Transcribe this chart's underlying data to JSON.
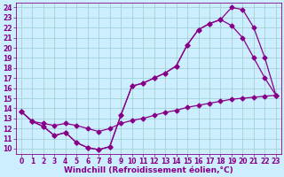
{
  "background_color": "#cceeff",
  "line_color": "#880088",
  "marker": "D",
  "markersize": 2.5,
  "linewidth": 0.9,
  "xlabel": "Windchill (Refroidissement éolien,°C)",
  "xlabel_fontsize": 6.5,
  "tick_fontsize": 5.5,
  "xlim": [
    -0.5,
    23.5
  ],
  "ylim": [
    9.5,
    24.5
  ],
  "xticks": [
    0,
    1,
    2,
    3,
    4,
    5,
    6,
    7,
    8,
    9,
    10,
    11,
    12,
    13,
    14,
    15,
    16,
    17,
    18,
    19,
    20,
    21,
    22,
    23
  ],
  "yticks": [
    10,
    11,
    12,
    13,
    14,
    15,
    16,
    17,
    18,
    19,
    20,
    21,
    22,
    23,
    24
  ],
  "grid_color": "#99cccc",
  "lines": [
    {
      "x": [
        0,
        1,
        2,
        3,
        4,
        5,
        6,
        7,
        8,
        9,
        10,
        11,
        12,
        13,
        14,
        15,
        16,
        17,
        18,
        19,
        20,
        21,
        22,
        23
      ],
      "y": [
        13.7,
        12.7,
        12.2,
        11.3,
        11.6,
        10.6,
        10.1,
        9.9,
        10.2,
        13.3,
        16.2,
        16.5,
        17.0,
        17.5,
        18.2,
        20.3,
        21.8,
        22.4,
        22.8,
        24.0,
        23.8,
        22.0,
        19.0,
        15.3
      ]
    },
    {
      "x": [
        0,
        1,
        2,
        3,
        4,
        5,
        6,
        7,
        8,
        9,
        10,
        11,
        12,
        13,
        14,
        15,
        16,
        17,
        18,
        19,
        20,
        21,
        22,
        23
      ],
      "y": [
        13.7,
        12.7,
        12.2,
        11.3,
        11.6,
        10.6,
        10.1,
        9.9,
        10.2,
        13.3,
        16.2,
        16.5,
        17.0,
        17.5,
        18.2,
        20.3,
        21.8,
        22.4,
        22.8,
        22.2,
        21.0,
        19.0,
        17.0,
        15.3
      ]
    },
    {
      "x": [
        0,
        1,
        2,
        3,
        4,
        5,
        6,
        7,
        8,
        9,
        10,
        11,
        12,
        13,
        14,
        15,
        16,
        17,
        18,
        19,
        20,
        21,
        22,
        23
      ],
      "y": [
        13.7,
        12.7,
        12.5,
        12.3,
        12.5,
        12.3,
        12.0,
        11.7,
        12.0,
        12.5,
        12.8,
        13.0,
        13.3,
        13.6,
        13.8,
        14.1,
        14.3,
        14.5,
        14.7,
        14.9,
        15.0,
        15.1,
        15.2,
        15.3
      ]
    }
  ]
}
